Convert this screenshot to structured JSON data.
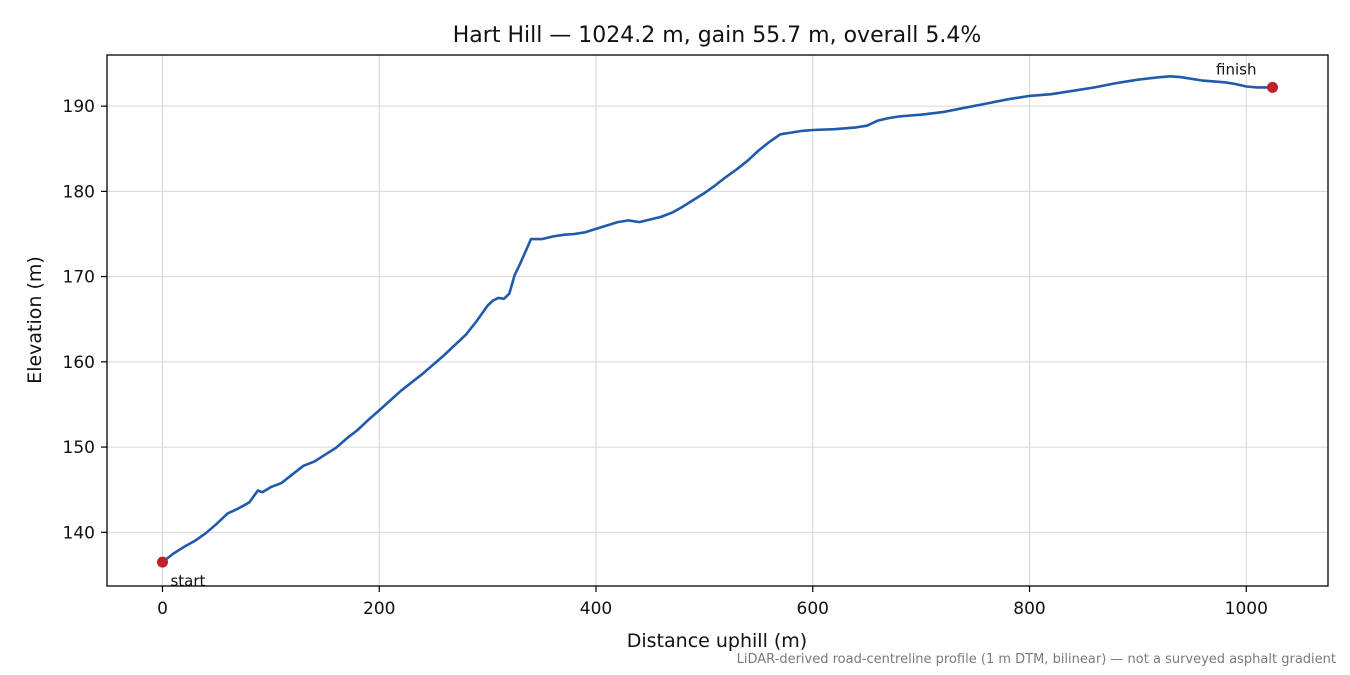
{
  "chart_data": {
    "type": "line",
    "title": "Hart Hill — 1024.2 m, gain 55.7 m, overall 5.4%",
    "xlabel": "Distance uphill (m)",
    "ylabel": "Elevation (m)",
    "xlim": [
      -51.2,
      1075.4
    ],
    "ylim": [
      133.7,
      196.0
    ],
    "xticks": [
      0,
      200,
      400,
      600,
      800,
      1000
    ],
    "yticks": [
      140,
      150,
      160,
      170,
      180,
      190
    ],
    "grid": true,
    "line_color": "#1f5aab",
    "marker_color": "#c0202a",
    "series": [
      {
        "x": [
          0,
          10,
          20,
          30,
          40,
          50,
          60,
          70,
          80,
          88,
          92,
          100,
          110,
          120,
          130,
          140,
          150,
          160,
          170,
          180,
          190,
          200,
          220,
          240,
          260,
          280,
          290,
          300,
          305,
          310,
          315,
          320,
          325,
          330,
          340,
          350,
          360,
          370,
          380,
          390,
          400,
          410,
          420,
          430,
          440,
          450,
          460,
          470,
          480,
          490,
          500,
          510,
          520,
          530,
          540,
          550,
          560,
          570,
          580,
          590,
          600,
          620,
          640,
          650,
          660,
          670,
          680,
          690,
          700,
          720,
          740,
          760,
          780,
          800,
          820,
          840,
          860,
          880,
          900,
          920,
          930,
          940,
          960,
          980,
          990,
          1000,
          1010,
          1024.2
        ],
        "y": [
          136.5,
          137.5,
          138.3,
          139.0,
          139.9,
          141.0,
          142.2,
          142.8,
          143.5,
          144.9,
          144.7,
          145.3,
          145.8,
          146.8,
          147.8,
          148.3,
          149.1,
          149.9,
          151.0,
          152.0,
          153.2,
          154.3,
          156.6,
          158.6,
          160.8,
          163.2,
          164.8,
          166.6,
          167.2,
          167.5,
          167.4,
          168.0,
          170.2,
          171.5,
          174.4,
          174.4,
          174.7,
          174.9,
          175.0,
          175.2,
          175.6,
          176.0,
          176.4,
          176.6,
          176.4,
          176.7,
          177.0,
          177.5,
          178.2,
          179.0,
          179.8,
          180.7,
          181.7,
          182.6,
          183.6,
          184.8,
          185.8,
          186.7,
          186.9,
          187.1,
          187.2,
          187.3,
          187.5,
          187.7,
          188.3,
          188.6,
          188.8,
          188.9,
          189.0,
          189.3,
          189.8,
          190.3,
          190.8,
          191.2,
          191.4,
          191.8,
          192.2,
          192.7,
          193.1,
          193.4,
          193.5,
          193.4,
          193.0,
          192.8,
          192.6,
          192.3,
          192.2,
          192.2
        ]
      }
    ],
    "annotations": [
      {
        "text": "start",
        "x": 0,
        "y": 136.5
      },
      {
        "text": "finish",
        "x": 1024.2,
        "y": 192.2
      }
    ],
    "footnote": "LiDAR-derived road-centreline profile (1 m DTM, bilinear) — not a surveyed asphalt gradient"
  }
}
